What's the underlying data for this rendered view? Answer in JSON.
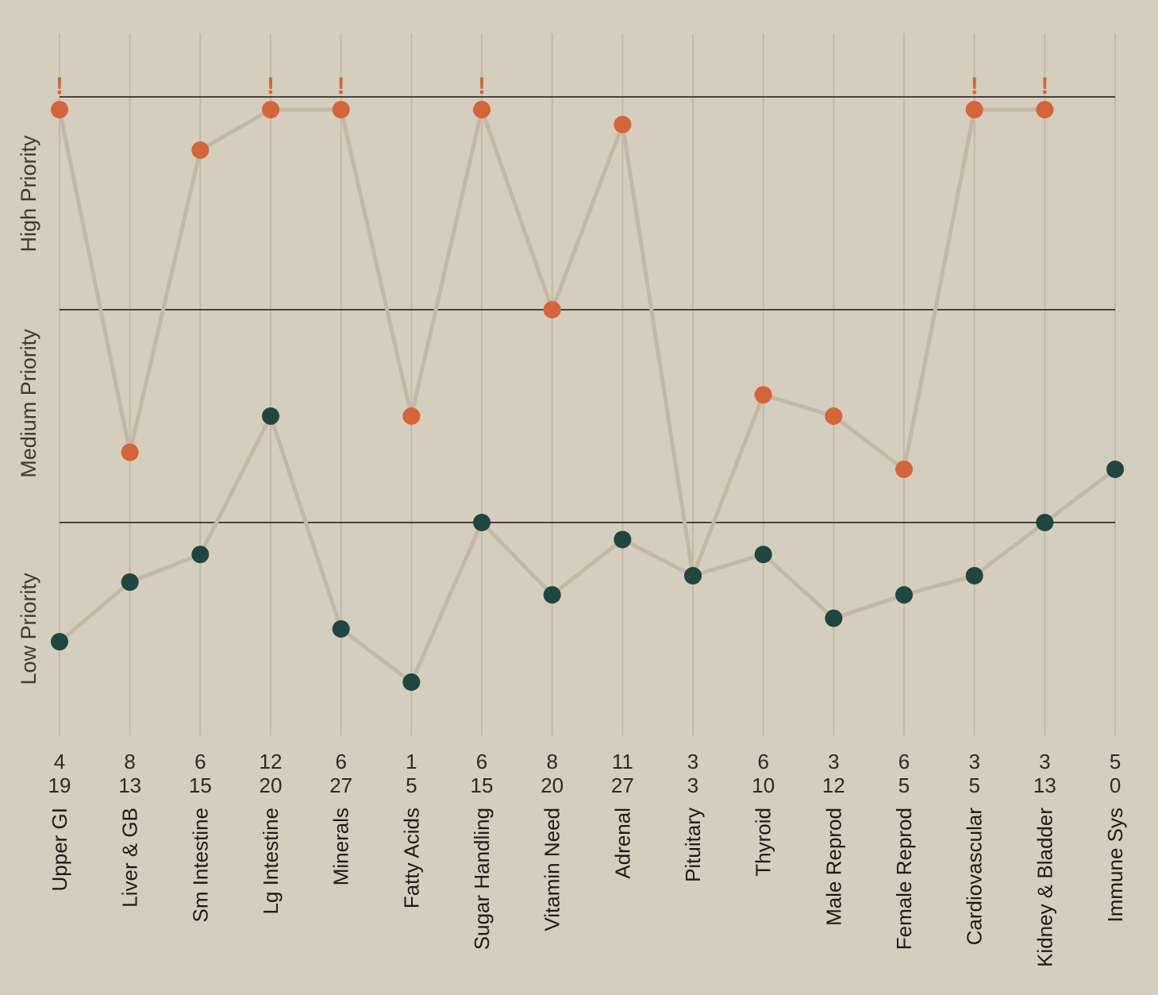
{
  "chart_data": {
    "type": "line",
    "categories": [
      "Upper GI",
      "Liver & GB",
      "Sm Intestine",
      "Lg Intestine",
      "Minerals",
      "Fatty Acids",
      "Sugar Handling",
      "Vitamin Need",
      "Adrenal",
      "Pituitary",
      "Thyroid",
      "Male Reprod",
      "Female Reprod",
      "Cardiovascular",
      "Kidney & Bladder",
      "Immune Sys"
    ],
    "row1_values": [
      "4",
      "8",
      "6",
      "12",
      "6",
      "1",
      "6",
      "8",
      "11",
      "3",
      "6",
      "3",
      "6",
      "3",
      "3",
      "5"
    ],
    "row2_values": [
      "19",
      "13",
      "15",
      "20",
      "27",
      "5",
      "15",
      "20",
      "27",
      "3",
      "10",
      "12",
      "5",
      "5",
      "13",
      "0"
    ],
    "bands": [
      "Low Priority",
      "Medium Priority",
      "High Priority"
    ],
    "ylim": [
      0,
      3
    ],
    "series": [
      {
        "values": [
          2.94,
          1.33,
          2.75,
          2.94,
          2.94,
          1.5,
          2.94,
          2.0,
          2.87,
          0.75,
          1.6,
          1.5,
          1.25,
          2.94,
          2.94,
          null
        ],
        "color": "#d4643a",
        "alerts": [
          true,
          false,
          false,
          true,
          true,
          false,
          true,
          false,
          false,
          false,
          false,
          false,
          false,
          true,
          true,
          false
        ]
      },
      {
        "values": [
          0.44,
          0.72,
          0.85,
          1.5,
          0.5,
          0.25,
          1.0,
          0.66,
          0.92,
          0.75,
          0.85,
          0.55,
          0.66,
          0.75,
          1.0,
          1.25
        ],
        "color": "#1f4640"
      }
    ],
    "connector_color": "#c3b8a6",
    "grid": true,
    "alert_mark": "!"
  }
}
